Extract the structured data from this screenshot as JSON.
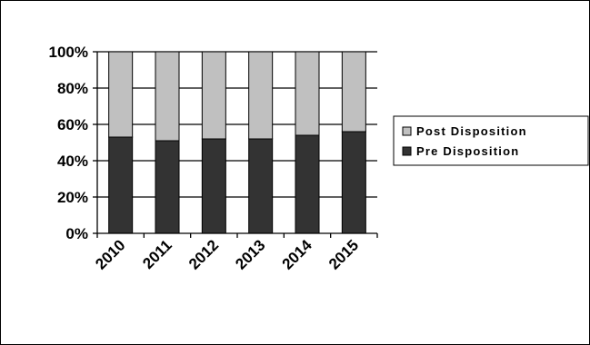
{
  "chart_data": {
    "type": "bar",
    "stacked": true,
    "percent": true,
    "categories": [
      "2010",
      "2011",
      "2012",
      "2013",
      "2014",
      "2015"
    ],
    "series": [
      {
        "name": "Pre Disposition",
        "values": [
          53,
          51,
          52,
          52,
          54,
          56
        ],
        "color": "#333333"
      },
      {
        "name": "Post Disposition",
        "values": [
          47,
          49,
          48,
          48,
          46,
          44
        ],
        "color": "#c0c0c0"
      }
    ],
    "y_ticks": [
      "0%",
      "20%",
      "40%",
      "60%",
      "80%",
      "100%"
    ],
    "ylim": [
      0,
      100
    ],
    "grid": true,
    "legend_position": "right",
    "legend": [
      "Post Disposition",
      "Pre Disposition"
    ]
  }
}
